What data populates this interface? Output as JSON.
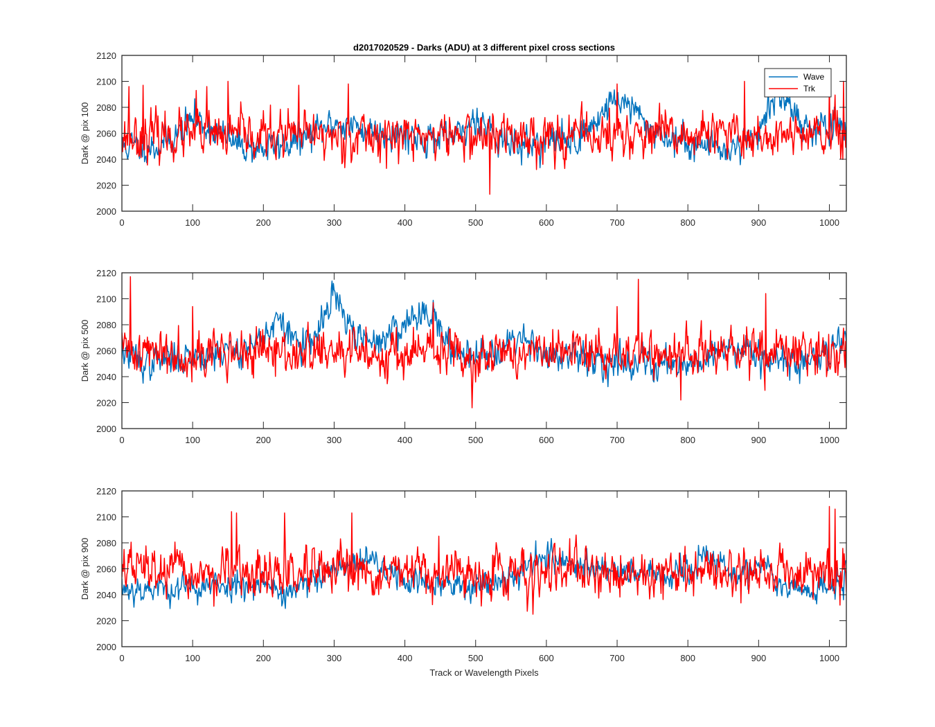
{
  "chart_data": {
    "title": "d2017020529 - Darks (ADU) at 3 different pixel cross sections",
    "xlabel": "Track or Wavelength Pixels",
    "legend": {
      "position": "top-right",
      "entries": [
        "Wave",
        "Trk"
      ]
    },
    "colors": {
      "Wave": "#0072BD",
      "Trk": "#FF0000",
      "axes": "#262626"
    },
    "panels": [
      {
        "type": "line",
        "ylabel": "Dark @ pix 100",
        "xlim": [
          0,
          1024
        ],
        "ylim": [
          2000,
          2120
        ],
        "xticks": [
          0,
          100,
          200,
          300,
          400,
          500,
          600,
          700,
          800,
          900,
          1000
        ],
        "yticks": [
          2000,
          2020,
          2040,
          2060,
          2080,
          2100,
          2120
        ],
        "show_legend": true,
        "series": [
          {
            "name": "Wave",
            "color": "#0072BD",
            "baseline": [
              [
                0,
                2050
              ],
              [
                50,
                2050
              ],
              [
                80,
                2060
              ],
              [
                100,
                2072
              ],
              [
                130,
                2062
              ],
              [
                160,
                2052
              ],
              [
                200,
                2048
              ],
              [
                250,
                2054
              ],
              [
                280,
                2062
              ],
              [
                300,
                2068
              ],
              [
                350,
                2062
              ],
              [
                400,
                2060
              ],
              [
                450,
                2055
              ],
              [
                480,
                2058
              ],
              [
                500,
                2074
              ],
              [
                520,
                2064
              ],
              [
                550,
                2050
              ],
              [
                600,
                2054
              ],
              [
                650,
                2056
              ],
              [
                690,
                2084
              ],
              [
                710,
                2086
              ],
              [
                740,
                2066
              ],
              [
                780,
                2054
              ],
              [
                830,
                2050
              ],
              [
                860,
                2048
              ],
              [
                900,
                2060
              ],
              [
                920,
                2088
              ],
              [
                945,
                2086
              ],
              [
                960,
                2066
              ],
              [
                1000,
                2063
              ],
              [
                1024,
                2060
              ]
            ],
            "noise": 9,
            "seed": 11
          },
          {
            "name": "Trk",
            "color": "#FF0000",
            "baseline": [
              [
                0,
                2058
              ],
              [
                1024,
                2058
              ]
            ],
            "noise": 13,
            "seed": 23,
            "spikes": [
              [
                10,
                2096
              ],
              [
                30,
                2097
              ],
              [
                105,
                2093
              ],
              [
                120,
                2096
              ],
              [
                150,
                2100
              ],
              [
                250,
                2097
              ],
              [
                320,
                2098
              ],
              [
                520,
                2013
              ],
              [
                700,
                2098
              ],
              [
                880,
                2100
              ],
              [
                1000,
                2099
              ],
              [
                1020,
                2100
              ]
            ]
          }
        ]
      },
      {
        "type": "line",
        "ylabel": "Dark @ pix 500",
        "xlim": [
          0,
          1024
        ],
        "ylim": [
          2000,
          2120
        ],
        "xticks": [
          0,
          100,
          200,
          300,
          400,
          500,
          600,
          700,
          800,
          900,
          1000
        ],
        "yticks": [
          2000,
          2020,
          2040,
          2060,
          2080,
          2100,
          2120
        ],
        "show_legend": false,
        "series": [
          {
            "name": "Wave",
            "color": "#0072BD",
            "baseline": [
              [
                0,
                2060
              ],
              [
                30,
                2050
              ],
              [
                100,
                2056
              ],
              [
                180,
                2062
              ],
              [
                220,
                2082
              ],
              [
                250,
                2066
              ],
              [
                270,
                2064
              ],
              [
                300,
                2104
              ],
              [
                320,
                2078
              ],
              [
                350,
                2064
              ],
              [
                380,
                2074
              ],
              [
                420,
                2088
              ],
              [
                440,
                2092
              ],
              [
                460,
                2060
              ],
              [
                520,
                2058
              ],
              [
                560,
                2072
              ],
              [
                580,
                2068
              ],
              [
                600,
                2055
              ],
              [
                700,
                2052
              ],
              [
                800,
                2050
              ],
              [
                880,
                2065
              ],
              [
                900,
                2058
              ],
              [
                960,
                2048
              ],
              [
                1000,
                2060
              ],
              [
                1024,
                2076
              ]
            ],
            "noise": 9,
            "seed": 37
          },
          {
            "name": "Trk",
            "color": "#FF0000",
            "baseline": [
              [
                0,
                2060
              ],
              [
                200,
                2058
              ],
              [
                1024,
                2058
              ]
            ],
            "noise": 13,
            "seed": 41,
            "spikes": [
              [
                12,
                2117
              ],
              [
                100,
                2094
              ],
              [
                440,
                2097
              ],
              [
                495,
                2016
              ],
              [
                700,
                2094
              ],
              [
                730,
                2115
              ],
              [
                790,
                2022
              ],
              [
                910,
                2104
              ]
            ]
          }
        ]
      },
      {
        "type": "line",
        "ylabel": "Dark @ pix 900",
        "xlim": [
          0,
          1024
        ],
        "ylim": [
          2000,
          2120
        ],
        "xticks": [
          0,
          100,
          200,
          300,
          400,
          500,
          600,
          700,
          800,
          900,
          1000
        ],
        "yticks": [
          2000,
          2020,
          2040,
          2060,
          2080,
          2100,
          2120
        ],
        "show_legend": false,
        "series": [
          {
            "name": "Wave",
            "color": "#0072BD",
            "baseline": [
              [
                0,
                2045
              ],
              [
                100,
                2045
              ],
              [
                200,
                2050
              ],
              [
                230,
                2040
              ],
              [
                300,
                2058
              ],
              [
                350,
                2066
              ],
              [
                400,
                2052
              ],
              [
                450,
                2046
              ],
              [
                500,
                2048
              ],
              [
                550,
                2054
              ],
              [
                600,
                2072
              ],
              [
                620,
                2064
              ],
              [
                700,
                2060
              ],
              [
                760,
                2054
              ],
              [
                800,
                2056
              ],
              [
                830,
                2072
              ],
              [
                870,
                2052
              ],
              [
                900,
                2064
              ],
              [
                940,
                2048
              ],
              [
                980,
                2040
              ],
              [
                1024,
                2055
              ]
            ],
            "noise": 8,
            "seed": 53
          },
          {
            "name": "Trk",
            "color": "#FF0000",
            "baseline": [
              [
                0,
                2062
              ],
              [
                100,
                2055
              ],
              [
                1024,
                2058
              ]
            ],
            "noise": 13,
            "seed": 67,
            "spikes": [
              [
                155,
                2104
              ],
              [
                162,
                2103
              ],
              [
                230,
                2103
              ],
              [
                325,
                2103
              ],
              [
                1000,
                2108
              ],
              [
                1008,
                2106
              ],
              [
                1015,
                2032
              ]
            ]
          }
        ]
      }
    ]
  }
}
